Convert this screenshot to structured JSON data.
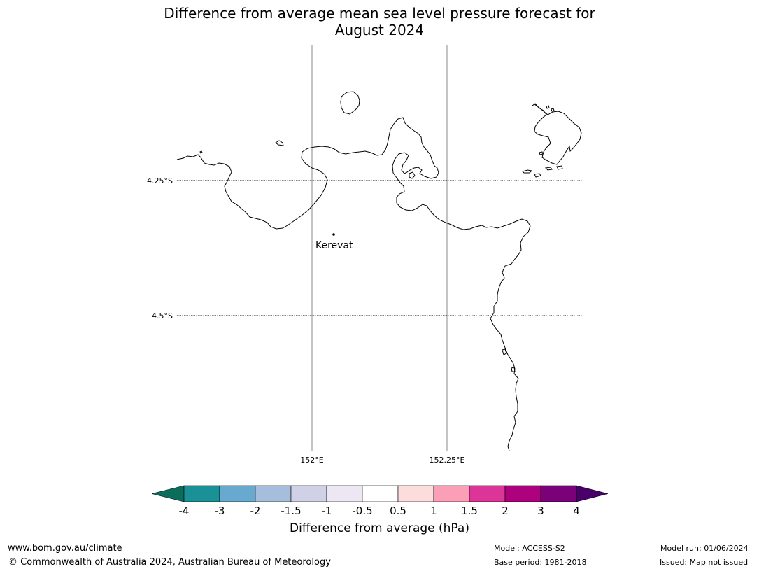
{
  "title_line1": "Difference from average mean sea level pressure forecast for",
  "title_line2": "August 2024",
  "map": {
    "lat_labels": [
      "4.25°S",
      "4.5°S"
    ],
    "lon_labels": [
      "152°E",
      "152.25°E"
    ],
    "place": "Kerevat"
  },
  "colorbar": {
    "title": "Difference from average (hPa)",
    "ticks": [
      "-4",
      "-3",
      "-2",
      "-1.5",
      "-1",
      "-0.5",
      "0.5",
      "1",
      "1.5",
      "2",
      "3",
      "4"
    ],
    "colors": [
      "#1a9196",
      "#67a9cf",
      "#a6bddb",
      "#d0d1e6",
      "#ece7f2",
      "#ffffff",
      "#fddcdc",
      "#fa9fb5",
      "#dd3497",
      "#ae017e",
      "#7a0177"
    ],
    "under_color": "#0b6e5d",
    "over_color": "#4a0068"
  },
  "footer": {
    "website": "www.bom.gov.au/climate",
    "copyright": "© Commonwealth of Australia 2024, Australian Bureau of Meteorology",
    "model": "Model: ACCESS-S2",
    "base_period": "Base period: 1981-2018",
    "model_run": "Model run: 01/06/2024",
    "issued": "Issued: Map not issued"
  }
}
